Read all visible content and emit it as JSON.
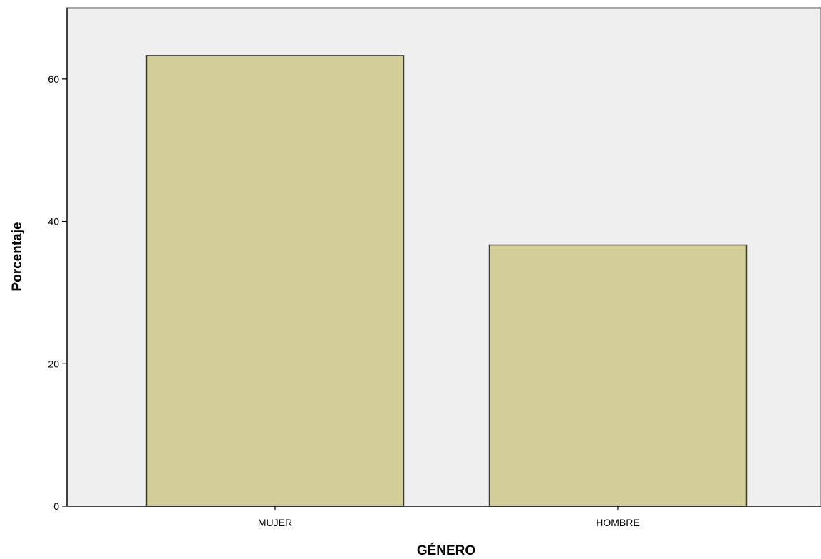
{
  "chart_data": {
    "type": "bar",
    "categories": [
      "MUJER",
      "HOMBRE"
    ],
    "values": [
      63.3,
      36.7
    ],
    "xlabel": "GÉNERO",
    "ylabel": "Porcentaje",
    "ylim": [
      0,
      70
    ],
    "yticks": [
      0,
      20,
      40,
      60
    ],
    "ytick_labels": [
      "0",
      "20",
      "40",
      "60"
    ],
    "grid": false,
    "legend": "none"
  },
  "colors": {
    "plot_background": "#f0f0f0",
    "bar_fill": "#d3ce97",
    "bar_stroke": "#3c3c3c",
    "axis": "#000000"
  }
}
